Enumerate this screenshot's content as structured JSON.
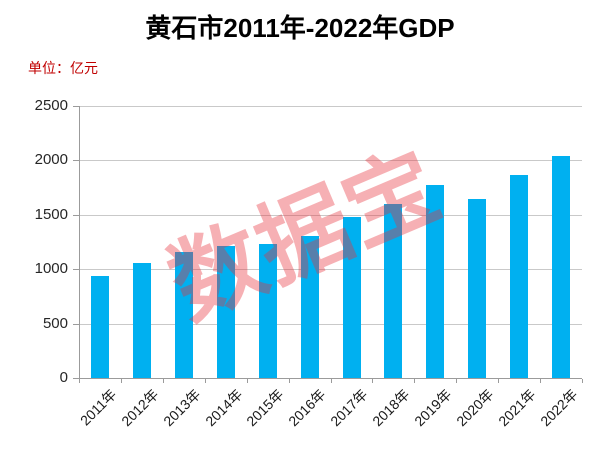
{
  "page": {
    "background": "#ffffff"
  },
  "chart_data": {
    "type": "bar",
    "title": "黄石市2011年-2022年GDP",
    "unit_label": "单位：亿元",
    "categories": [
      "2011年",
      "2012年",
      "2013年",
      "2014年",
      "2015年",
      "2016年",
      "2017年",
      "2018年",
      "2019年",
      "2020年",
      "2021年",
      "2022年"
    ],
    "values": [
      935,
      1055,
      1155,
      1215,
      1230,
      1305,
      1480,
      1600,
      1770,
      1650,
      1870,
      2040
    ],
    "xlabel": "",
    "ylabel": "",
    "ylim": [
      0,
      2500
    ],
    "yticks": [
      0,
      500,
      1000,
      1500,
      2000,
      2500
    ],
    "grid": "horizontal",
    "legend": "none",
    "bar_color": "#00B0F0",
    "gridline_color": "#C9C9C9",
    "axis_color": "#9B9B9B",
    "watermark": {
      "text": "数据宝",
      "color": "#E8323C",
      "opacity": 0.38,
      "rotation_deg": -23
    }
  }
}
